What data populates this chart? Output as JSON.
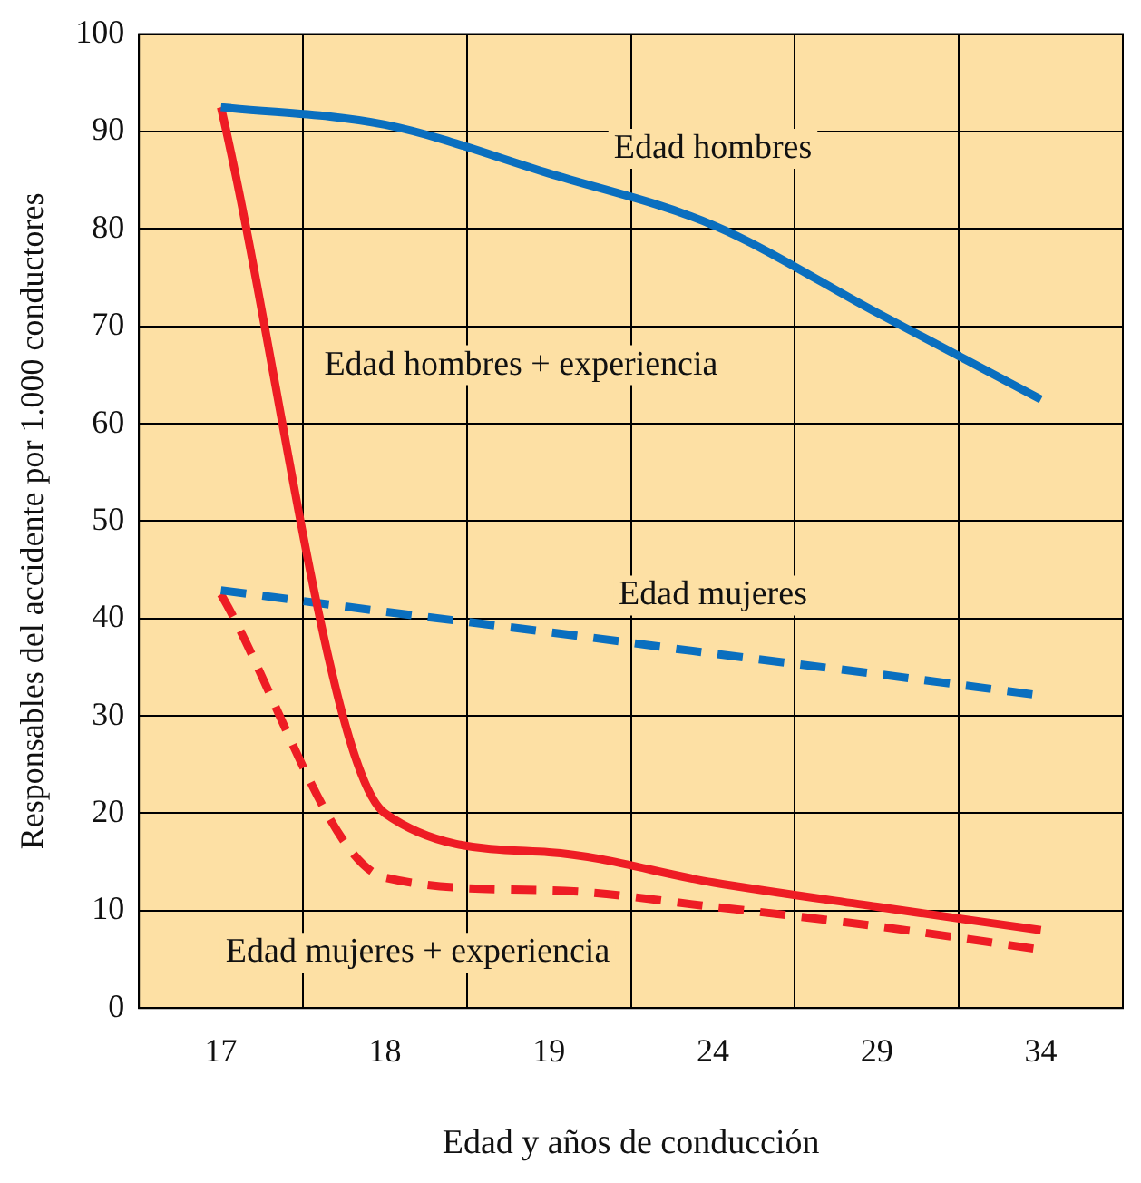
{
  "chart_data": {
    "type": "line",
    "xlabel": "Edad y años de conducción",
    "ylabel": "Responsables del accidente por 1.000 conductores",
    "categories": [
      "17",
      "18",
      "19",
      "24",
      "29",
      "34"
    ],
    "series": [
      {
        "name": "Edad hombres",
        "color": "#0a6fbf",
        "line_style": "solid",
        "values": [
          92.5,
          90.7,
          85.7,
          80.4,
          71.4,
          62.5
        ]
      },
      {
        "name": "Edad hombres + experiencia",
        "color": "#ee1c24",
        "line_style": "solid",
        "values": [
          92.5,
          20,
          16,
          12.9,
          10.4,
          8
        ]
      },
      {
        "name": "Edad mujeres",
        "color": "#0a6fbf",
        "line_style": "dashed",
        "values": [
          42.9,
          40.7,
          38.6,
          36.4,
          34.3,
          32.1
        ]
      },
      {
        "name": "Edad mujeres + experiencia",
        "color": "#ee1c24",
        "line_style": "dashed",
        "values": [
          42.5,
          13.4,
          12.1,
          10.4,
          8.4,
          6
        ]
      }
    ],
    "ylim": [
      0,
      100
    ],
    "yticks": [
      0,
      10,
      20,
      30,
      40,
      50,
      60,
      70,
      80,
      90,
      100
    ],
    "grid": true,
    "legend": false,
    "marker": "none"
  }
}
